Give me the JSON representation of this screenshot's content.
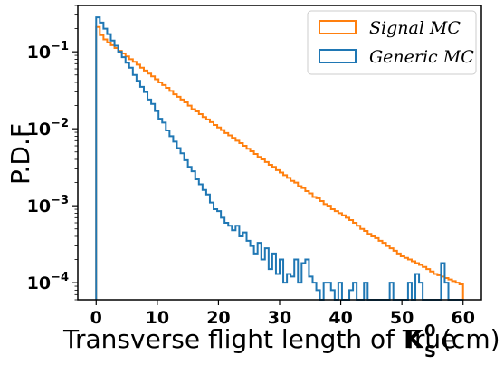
{
  "chart_data": {
    "type": "step-histogram",
    "title": "",
    "xlabel": "Transverse flight length of True",
    "xlabel_symbol": "K",
    "xlabel_sup": "0",
    "xlabel_sub": "S",
    "xlabel_unit": "(cm)",
    "ylabel": "P.D.F",
    "yscale": "log",
    "xlim": [
      -3,
      63
    ],
    "ylim": [
      6e-05,
      0.4
    ],
    "xticks": [
      0,
      10,
      20,
      30,
      40,
      50,
      60
    ],
    "xtick_labels": [
      "0",
      "10",
      "20",
      "30",
      "40",
      "50",
      "60"
    ],
    "yticks": [
      0.0001,
      0.001,
      0.01,
      0.1
    ],
    "ytick_labels": [
      "10^-4",
      "10^-3",
      "10^-2",
      "10^-1"
    ],
    "grid": false,
    "legend_position": "top-right",
    "series": [
      {
        "name": "Signal MC",
        "color": "#ff7f0e",
        "bin_edges": [
          0,
          0.6,
          1.2,
          1.8,
          2.4,
          3.0,
          3.6,
          4.2,
          4.8,
          5.4,
          6.0,
          6.6,
          7.2,
          7.8,
          8.4,
          9.0,
          9.6,
          10.2,
          10.8,
          11.4,
          12.0,
          12.6,
          13.2,
          13.8,
          14.4,
          15.0,
          15.6,
          16.2,
          16.8,
          17.4,
          18.0,
          18.6,
          19.2,
          19.8,
          20.4,
          21.0,
          21.6,
          22.2,
          22.8,
          23.4,
          24.0,
          24.6,
          25.2,
          25.8,
          26.4,
          27.0,
          27.6,
          28.2,
          28.8,
          29.4,
          30.0,
          30.6,
          31.2,
          31.8,
          32.4,
          33.0,
          33.6,
          34.2,
          34.8,
          35.4,
          36.0,
          36.6,
          37.2,
          37.8,
          38.4,
          39.0,
          39.6,
          40.2,
          40.8,
          41.4,
          42.0,
          42.6,
          43.2,
          43.8,
          44.4,
          45.0,
          45.6,
          46.2,
          46.8,
          47.4,
          48.0,
          48.6,
          49.2,
          49.8,
          50.4,
          51.0,
          51.6,
          52.2,
          52.8,
          53.4,
          54.0,
          54.6,
          55.2,
          55.8,
          56.4,
          57.0,
          57.6,
          58.2,
          58.8,
          59.4,
          60.0
        ],
        "values": [
          0.21,
          0.165,
          0.145,
          0.132,
          0.122,
          0.112,
          0.103,
          0.095,
          0.087,
          0.08,
          0.074,
          0.068,
          0.062,
          0.057,
          0.052,
          0.048,
          0.044,
          0.04,
          0.037,
          0.034,
          0.031,
          0.028,
          0.026,
          0.024,
          0.022,
          0.02,
          0.018,
          0.0168,
          0.0155,
          0.0142,
          0.0132,
          0.0122,
          0.0112,
          0.0104,
          0.0096,
          0.0088,
          0.0082,
          0.0076,
          0.007,
          0.0065,
          0.006,
          0.0055,
          0.0051,
          0.0047,
          0.0043,
          0.004,
          0.0037,
          0.0034,
          0.0032,
          0.0029,
          0.0027,
          0.0025,
          0.0023,
          0.0021,
          0.002,
          0.0018,
          0.0017,
          0.00155,
          0.00145,
          0.0013,
          0.00125,
          0.00115,
          0.00105,
          0.001,
          0.0009,
          0.00085,
          0.0008,
          0.00075,
          0.0007,
          0.00065,
          0.0006,
          0.00055,
          0.0005,
          0.00047,
          0.00043,
          0.0004,
          0.00038,
          0.00035,
          0.00033,
          0.0003,
          0.00028,
          0.00026,
          0.00024,
          0.00022,
          0.00021,
          0.0002,
          0.00019,
          0.00018,
          0.00017,
          0.00016,
          0.00015,
          0.00014,
          0.00013,
          0.000125,
          0.00012,
          0.000115,
          0.00011,
          0.000105,
          0.0001,
          9.5e-05
        ]
      },
      {
        "name": "Generic MC",
        "color": "#1f77b4",
        "bin_edges": [
          0,
          0.6,
          1.2,
          1.8,
          2.4,
          3.0,
          3.6,
          4.2,
          4.8,
          5.4,
          6.0,
          6.6,
          7.2,
          7.8,
          8.4,
          9.0,
          9.6,
          10.2,
          10.8,
          11.4,
          12.0,
          12.6,
          13.2,
          13.8,
          14.4,
          15.0,
          15.6,
          16.2,
          16.8,
          17.4,
          18.0,
          18.6,
          19.2,
          19.8,
          20.4,
          21.0,
          21.6,
          22.2,
          22.8,
          23.4,
          24.0,
          24.6,
          25.2,
          25.8,
          26.4,
          27.0,
          27.6,
          28.2,
          28.8,
          29.4,
          30.0,
          30.6,
          31.2,
          31.8,
          32.4,
          33.0,
          33.6,
          34.2,
          34.8,
          35.4,
          36.0,
          36.6,
          37.2,
          37.8,
          38.4,
          39.0,
          39.6,
          40.2,
          40.8,
          41.4,
          42.0,
          42.6,
          43.2,
          43.8,
          44.4,
          45.0,
          45.6,
          46.2,
          46.8,
          47.4,
          48.0,
          48.6,
          49.2,
          49.8,
          50.4,
          51.0,
          51.6,
          52.2,
          52.8,
          53.4,
          54.0,
          54.6,
          55.2,
          55.8,
          56.4,
          57.0,
          57.6,
          58.2,
          58.8,
          59.4,
          60.0
        ],
        "values": [
          0.28,
          0.24,
          0.2,
          0.17,
          0.14,
          0.12,
          0.1,
          0.085,
          0.072,
          0.062,
          0.05,
          0.042,
          0.035,
          0.03,
          0.024,
          0.021,
          0.017,
          0.0135,
          0.012,
          0.0095,
          0.008,
          0.0068,
          0.0056,
          0.0048,
          0.0039,
          0.0032,
          0.0028,
          0.0022,
          0.0019,
          0.0016,
          0.0014,
          0.0011,
          0.0009,
          0.00085,
          0.0007,
          0.0006,
          0.00055,
          0.00048,
          0.00055,
          0.0004,
          0.00045,
          0.00035,
          0.0003,
          0.00024,
          0.00033,
          0.0002,
          0.00028,
          0.00015,
          0.00024,
          0.00013,
          0.0002,
          0.0001,
          0.00013,
          0.00012,
          0.0002,
          0.0001,
          0.00018,
          0.0002,
          0.00012,
          0.0001,
          8e-05,
          6e-05,
          0.0001,
          0.0001,
          8e-05,
          6e-05,
          0.0001,
          6e-05,
          6e-05,
          8e-05,
          0.0001,
          6e-05,
          6e-05,
          0.0001,
          6e-05,
          6e-05,
          6e-05,
          6e-05,
          6e-05,
          6e-05,
          0.0001,
          6e-05,
          6e-05,
          6e-05,
          6e-05,
          0.0001,
          6e-05,
          0.00013,
          0.0001,
          6e-05,
          6e-05,
          6e-05,
          6e-05,
          6e-05,
          0.00018,
          0.0001,
          6e-05,
          6e-05,
          6e-05,
          6e-05
        ]
      }
    ]
  }
}
